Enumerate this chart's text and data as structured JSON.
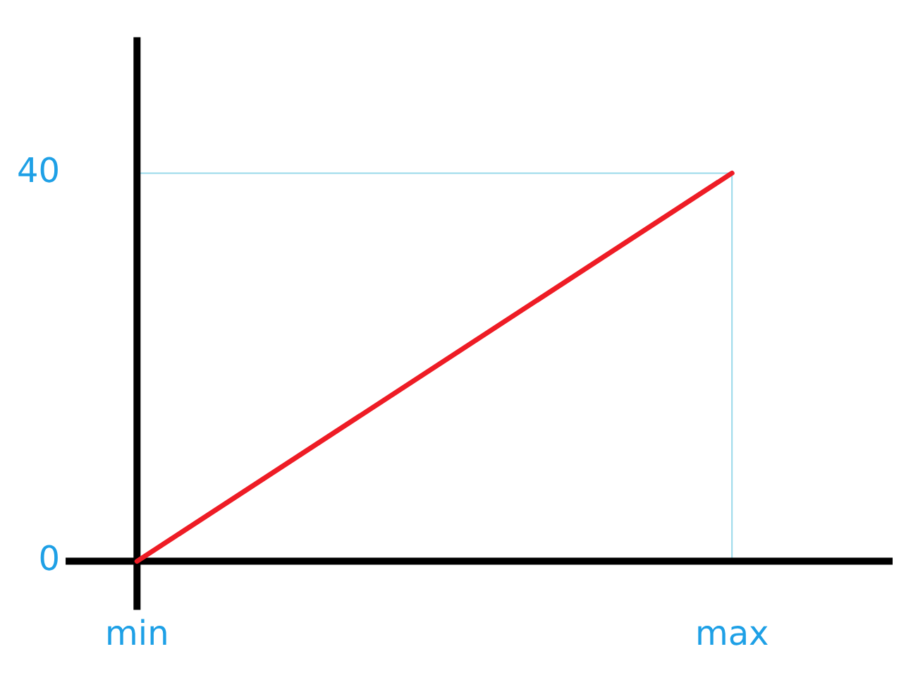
{
  "chart_data": {
    "type": "line",
    "categories": [
      "min",
      "max"
    ],
    "series": [
      {
        "color": "#ee1c25",
        "values": [
          0,
          40
        ]
      }
    ],
    "ylim": [
      -5,
      54
    ],
    "yticks": [
      0,
      40
    ],
    "ref_lines": [
      {
        "axis": "y",
        "value": 40,
        "color": "#99d9ea"
      },
      {
        "axis": "x",
        "value": "max",
        "color": "#99d9ea"
      }
    ],
    "grid": false,
    "legend": false,
    "marker": "none",
    "line_style": "solid"
  }
}
